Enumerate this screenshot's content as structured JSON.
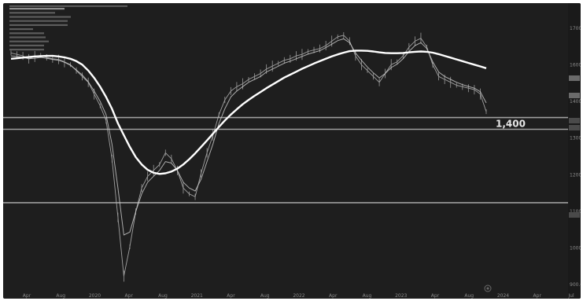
{
  "chart_data": {
    "type": "line",
    "title": "",
    "xlabel": "",
    "ylabel": "",
    "x_tick_labels": [
      "Apr",
      "Aug",
      "2020",
      "Apr",
      "Aug",
      "2021",
      "Apr",
      "Aug",
      "2022",
      "Apr",
      "Aug",
      "2023",
      "Apr",
      "Aug",
      "2024",
      "Apr",
      "Jul"
    ],
    "y_tick_labels": [
      "1700.00",
      "1600.00",
      "1400.00",
      "1300.00",
      "1200.00",
      "1100.00",
      "1000.00",
      "900.00"
    ],
    "ylim": [
      850,
      1760
    ],
    "horizontal_levels": [
      1440,
      1400,
      1150
    ],
    "annotation": {
      "text": "1,400",
      "value": 1400
    },
    "series": [
      {
        "role": "price",
        "values": [
          1660,
          1655,
          1650,
          1640,
          1648,
          1652,
          1645,
          1640,
          1638,
          1630,
          1620,
          1600,
          1580,
          1560,
          1520,
          1480,
          1430,
          1300,
          1100,
          900,
          1000,
          1120,
          1200,
          1240,
          1260,
          1280,
          1320,
          1300,
          1260,
          1200,
          1180,
          1170,
          1250,
          1320,
          1380,
          1450,
          1500,
          1530,
          1545,
          1555,
          1570,
          1580,
          1590,
          1605,
          1615,
          1625,
          1635,
          1640,
          1650,
          1655,
          1665,
          1670,
          1675,
          1685,
          1700,
          1715,
          1720,
          1700,
          1650,
          1620,
          1600,
          1580,
          1560,
          1590,
          1620,
          1630,
          1650,
          1680,
          1700,
          1710,
          1680,
          1620,
          1580,
          1570,
          1560,
          1550,
          1545,
          1540,
          1535,
          1520,
          1460
        ]
      },
      {
        "role": "fast-ma",
        "values": [
          1650,
          1648,
          1645,
          1640,
          1642,
          1645,
          1642,
          1638,
          1635,
          1628,
          1618,
          1602,
          1585,
          1562,
          1530,
          1495,
          1450,
          1350,
          1200,
          1040,
          1050,
          1120,
          1180,
          1220,
          1240,
          1260,
          1290,
          1285,
          1260,
          1220,
          1200,
          1190,
          1230,
          1290,
          1350,
          1420,
          1470,
          1510,
          1530,
          1545,
          1560,
          1570,
          1580,
          1595,
          1605,
          1615,
          1625,
          1632,
          1640,
          1648,
          1656,
          1662,
          1668,
          1678,
          1690,
          1702,
          1708,
          1695,
          1660,
          1635,
          1612,
          1592,
          1575,
          1590,
          1610,
          1622,
          1640,
          1665,
          1685,
          1695,
          1675,
          1630,
          1595,
          1580,
          1570,
          1560,
          1552,
          1546,
          1540,
          1528,
          1490
        ]
      },
      {
        "role": "slow-ma",
        "values": [
          1640,
          1642,
          1644,
          1646,
          1648,
          1649,
          1650,
          1650,
          1648,
          1645,
          1640,
          1632,
          1620,
          1600,
          1575,
          1545,
          1510,
          1470,
          1420,
          1380,
          1340,
          1305,
          1280,
          1262,
          1252,
          1248,
          1250,
          1256,
          1266,
          1280,
          1298,
          1318,
          1340,
          1362,
          1385,
          1408,
          1430,
          1450,
          1468,
          1485,
          1500,
          1514,
          1527,
          1540,
          1552,
          1564,
          1576,
          1586,
          1596,
          1606,
          1615,
          1624,
          1632,
          1640,
          1648,
          1655,
          1661,
          1666,
          1668,
          1668,
          1667,
          1665,
          1662,
          1660,
          1659,
          1659,
          1660,
          1662,
          1664,
          1665,
          1664,
          1661,
          1656,
          1650,
          1644,
          1638,
          1632,
          1626,
          1620,
          1614,
          1608
        ]
      }
    ]
  }
}
